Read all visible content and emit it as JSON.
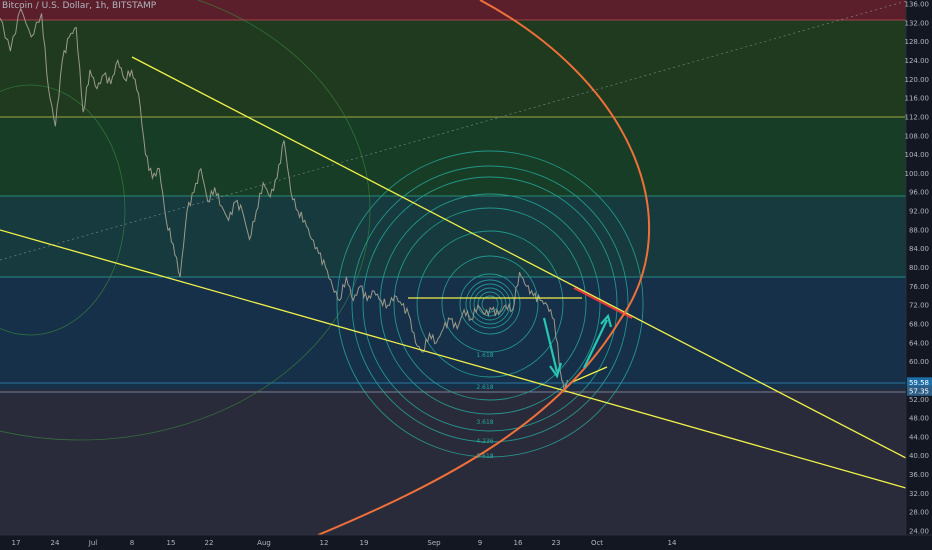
{
  "chart_data": {
    "type": "line",
    "title": "Bitcoin / U.S. Dollar, 1h, BITSTAMP",
    "x_tick_labels": [
      "17",
      "24",
      "Jul",
      "8",
      "15",
      "22",
      "Aug",
      "12",
      "19",
      "Sep",
      "9",
      "16",
      "23",
      "Oct",
      "14"
    ],
    "y_tick_labels": [
      "24.00",
      "28.00",
      "32.00",
      "36.00",
      "40.00",
      "44.00",
      "48.00",
      "52.00",
      "56.00",
      "60.00",
      "64.00",
      "68.00",
      "72.00",
      "76.00",
      "80.00",
      "84.00",
      "88.00",
      "92.00",
      "96.00",
      "100.00",
      "104.00",
      "108.00",
      "112.00",
      "116.00",
      "120.00",
      "124.00",
      "128.00",
      "132.00",
      "136.00"
    ],
    "ylim": [
      24,
      136
    ],
    "price_tags": [
      {
        "label": "59.58",
        "value": 55.6,
        "color": "#1e6fa8"
      },
      {
        "label": "57.35",
        "value": 53.8,
        "color": "#2d5f86"
      }
    ],
    "fib_levels": [
      "1.618",
      "2.618",
      "3.618",
      "4.236",
      "5.618"
    ],
    "price_series": [
      {
        "t": 0,
        "v": 133
      },
      {
        "t": 3,
        "v": 126
      },
      {
        "t": 6,
        "v": 135
      },
      {
        "t": 9,
        "v": 129
      },
      {
        "t": 12,
        "v": 134
      },
      {
        "t": 14,
        "v": 118
      },
      {
        "t": 16,
        "v": 110
      },
      {
        "t": 18,
        "v": 124
      },
      {
        "t": 20,
        "v": 129
      },
      {
        "t": 22,
        "v": 131
      },
      {
        "t": 24,
        "v": 113
      },
      {
        "t": 26,
        "v": 122
      },
      {
        "t": 28,
        "v": 118
      },
      {
        "t": 30,
        "v": 121
      },
      {
        "t": 32,
        "v": 119
      },
      {
        "t": 34,
        "v": 124
      },
      {
        "t": 36,
        "v": 120
      },
      {
        "t": 38,
        "v": 122
      },
      {
        "t": 40,
        "v": 117
      },
      {
        "t": 42,
        "v": 104
      },
      {
        "t": 44,
        "v": 99
      },
      {
        "t": 46,
        "v": 101
      },
      {
        "t": 48,
        "v": 90
      },
      {
        "t": 50,
        "v": 85
      },
      {
        "t": 52,
        "v": 78
      },
      {
        "t": 54,
        "v": 92
      },
      {
        "t": 56,
        "v": 96
      },
      {
        "t": 58,
        "v": 101
      },
      {
        "t": 60,
        "v": 94
      },
      {
        "t": 62,
        "v": 97
      },
      {
        "t": 64,
        "v": 93
      },
      {
        "t": 66,
        "v": 90
      },
      {
        "t": 68,
        "v": 94
      },
      {
        "t": 70,
        "v": 92
      },
      {
        "t": 72,
        "v": 86
      },
      {
        "t": 74,
        "v": 92
      },
      {
        "t": 76,
        "v": 98
      },
      {
        "t": 78,
        "v": 95
      },
      {
        "t": 80,
        "v": 99
      },
      {
        "t": 82,
        "v": 107
      },
      {
        "t": 84,
        "v": 96
      },
      {
        "t": 86,
        "v": 92
      },
      {
        "t": 88,
        "v": 90
      },
      {
        "t": 90,
        "v": 86
      },
      {
        "t": 92,
        "v": 83
      },
      {
        "t": 94,
        "v": 80
      },
      {
        "t": 96,
        "v": 76
      },
      {
        "t": 98,
        "v": 73
      },
      {
        "t": 100,
        "v": 78
      },
      {
        "t": 102,
        "v": 73
      },
      {
        "t": 104,
        "v": 76
      },
      {
        "t": 106,
        "v": 73
      },
      {
        "t": 108,
        "v": 75
      },
      {
        "t": 110,
        "v": 73
      },
      {
        "t": 112,
        "v": 72
      },
      {
        "t": 114,
        "v": 74
      },
      {
        "t": 116,
        "v": 72
      },
      {
        "t": 118,
        "v": 70
      },
      {
        "t": 120,
        "v": 64
      },
      {
        "t": 122,
        "v": 62
      },
      {
        "t": 124,
        "v": 66
      },
      {
        "t": 126,
        "v": 64
      },
      {
        "t": 128,
        "v": 67
      },
      {
        "t": 130,
        "v": 69
      },
      {
        "t": 132,
        "v": 67
      },
      {
        "t": 134,
        "v": 71
      },
      {
        "t": 136,
        "v": 69
      },
      {
        "t": 138,
        "v": 72
      },
      {
        "t": 140,
        "v": 70
      },
      {
        "t": 142,
        "v": 71
      },
      {
        "t": 144,
        "v": 70
      },
      {
        "t": 146,
        "v": 72
      },
      {
        "t": 148,
        "v": 71
      },
      {
        "t": 150,
        "v": 79
      },
      {
        "t": 152,
        "v": 76
      },
      {
        "t": 154,
        "v": 74
      },
      {
        "t": 156,
        "v": 73
      },
      {
        "t": 158,
        "v": 72
      },
      {
        "t": 160,
        "v": 69
      },
      {
        "t": 162,
        "v": 57
      },
      {
        "t": 163,
        "v": 54
      },
      {
        "t": 164,
        "v": 56
      }
    ]
  },
  "watermark": "Bitcoin / U.S. Dollar, 1h, BITSTAMP",
  "colors": {
    "background": "#131722",
    "trendline": "#f0f04a",
    "fib_circle": "#26a69a",
    "orange_curve": "#f0703a",
    "red_segment": "#e8383d",
    "axis_text": "#b2b5be"
  }
}
